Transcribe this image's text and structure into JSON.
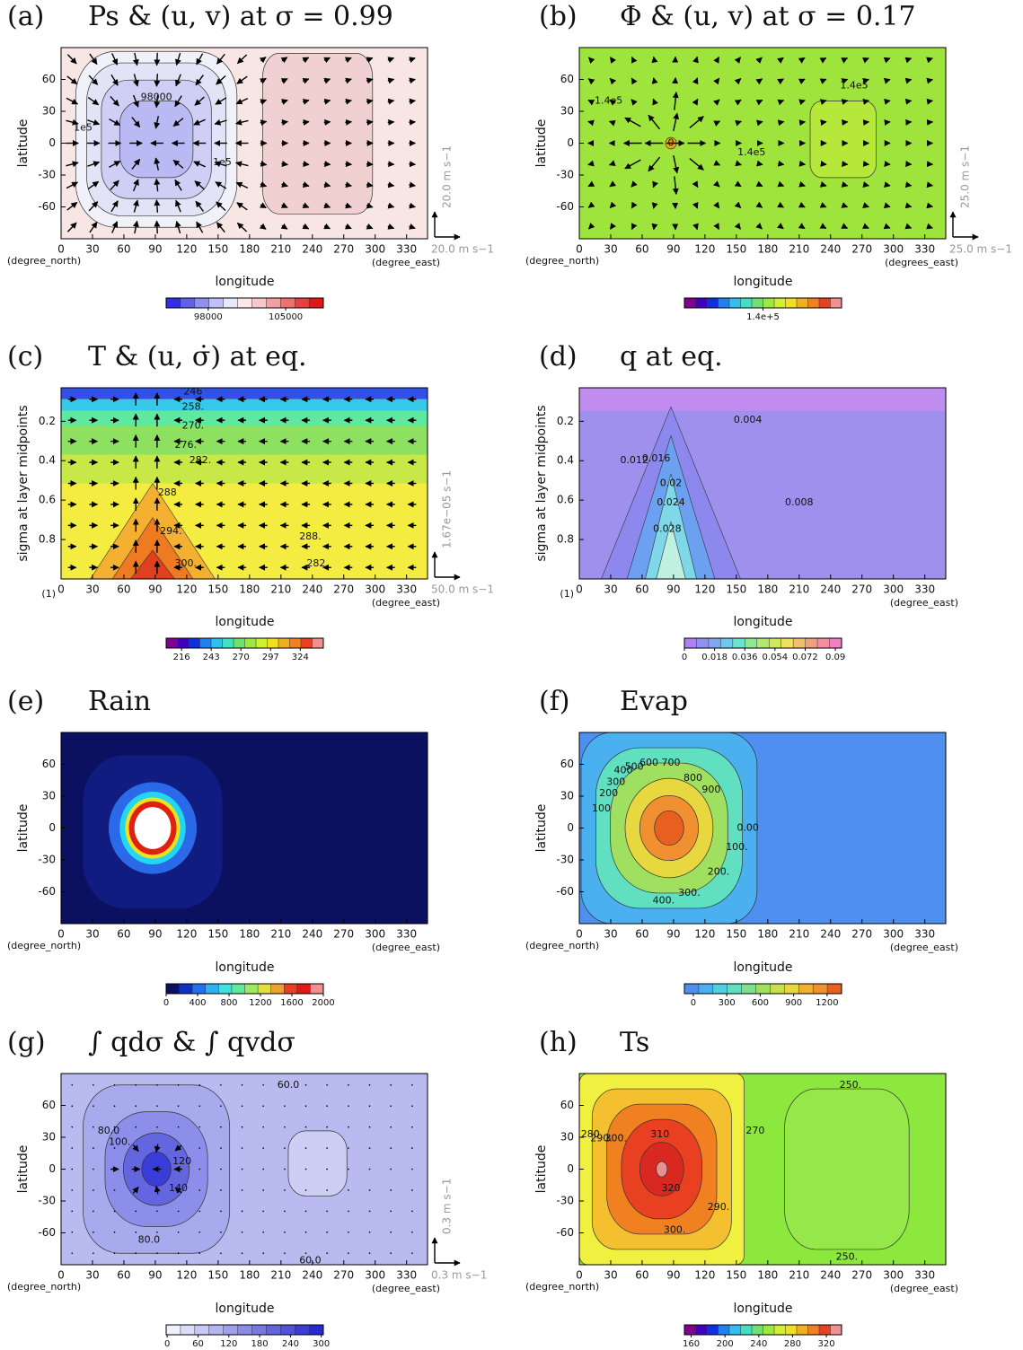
{
  "chart_data": [
    {
      "type": "contour",
      "panel_label": "(a)",
      "title": "Ps & (u, v) at σ = 0.99",
      "xlabel": "longitude",
      "ylabel": "latitude",
      "x_unit": "(degree_east)",
      "y_unit": "(degree_north)",
      "xlim": [
        0,
        350
      ],
      "ylim": [
        -90,
        90
      ],
      "xticks": [
        0,
        30,
        60,
        90,
        120,
        150,
        180,
        210,
        240,
        270,
        300,
        330
      ],
      "yticks": [
        -60,
        -30,
        0,
        30,
        60
      ],
      "vector_ref": {
        "x_label": "20.0 m s−1",
        "y_label": "20.0 m s−1"
      },
      "vectors": "converge",
      "contour_labels": [
        "98000",
        "1e5",
        "1e5"
      ],
      "colorbar": {
        "lim": [
          94200,
          108400
        ],
        "ticks": [
          98000,
          105000
        ],
        "colors": [
          "#3030e8",
          "#6060f0",
          "#9090f4",
          "#c0c0f8",
          "#e8e8fc",
          "#fce8e8",
          "#f8c8c8",
          "#f4a0a0",
          "#f07070",
          "#e84040",
          "#e01818"
        ]
      }
    },
    {
      "type": "contour",
      "panel_label": "(b)",
      "title": "Φ & (u, v) at σ = 0.17",
      "xlabel": "longitude",
      "ylabel": "latitude",
      "x_unit": "(degrees_east)",
      "y_unit": "(degree_north)",
      "xlim": [
        0,
        350
      ],
      "ylim": [
        -90,
        90
      ],
      "xticks": [
        0,
        30,
        60,
        90,
        120,
        150,
        180,
        210,
        240,
        270,
        300,
        330
      ],
      "yticks": [
        -60,
        -30,
        0,
        30,
        60
      ],
      "vector_ref": {
        "x_label": "25.0 m s−1",
        "y_label": "25.0 m s−1"
      },
      "vectors": "diverge",
      "contour_labels": [
        "1.4e5",
        "1.4e5",
        "1.4e5",
        "0"
      ],
      "colorbar": {
        "lim": [
          130000,
          150000
        ],
        "ticks": [
          {
            "value": 140000,
            "label": "1.4e+5"
          }
        ],
        "colors": [
          "#800090",
          "#4000c0",
          "#1030e0",
          "#2080f0",
          "#30c0f0",
          "#40e0c0",
          "#70e070",
          "#a0e840",
          "#d0f030",
          "#f0e020",
          "#f0b020",
          "#f08020",
          "#e84020",
          "#f09090"
        ]
      }
    },
    {
      "type": "contour",
      "panel_label": "(c)",
      "title": "T & (u, σ̇) at eq.",
      "xlabel": "longitude",
      "ylabel": "sigma at layer midpoints",
      "x_unit": "(degree_east)",
      "y_unit": "(1)",
      "xlim": [
        0,
        350
      ],
      "ylim": [
        1,
        0.03
      ],
      "xticks": [
        0,
        30,
        60,
        90,
        120,
        150,
        180,
        210,
        240,
        270,
        300,
        330
      ],
      "yticks": [
        0.2,
        0.4,
        0.6,
        0.8
      ],
      "vector_ref": {
        "x_label": "50.0 m s−1",
        "y_label": "1.67e−05 s−1"
      },
      "vectors": "section",
      "contour_labels": [
        "246",
        "258.",
        "270.",
        "276.",
        "282.",
        "288",
        "294.",
        "300.",
        "288.",
        "282."
      ],
      "colorbar": {
        "lim": [
          202,
          345
        ],
        "ticks": [
          216,
          243,
          270,
          297,
          324
        ],
        "colors": [
          "#800090",
          "#4000c0",
          "#1030e0",
          "#2080f0",
          "#30c0f0",
          "#40e0c0",
          "#70e070",
          "#a0e840",
          "#d0f030",
          "#f0e020",
          "#f0b020",
          "#f08020",
          "#e84020",
          "#f09090"
        ]
      }
    },
    {
      "type": "contour",
      "panel_label": "(d)",
      "title": "q at eq.",
      "xlabel": "longitude",
      "ylabel": "sigma at layer midpoints",
      "x_unit": "(degree_east)",
      "y_unit": "(1)",
      "xlim": [
        0,
        350
      ],
      "ylim": [
        1,
        0.03
      ],
      "xticks": [
        0,
        30,
        60,
        90,
        120,
        150,
        180,
        210,
        240,
        270,
        300,
        330
      ],
      "yticks": [
        0.2,
        0.4,
        0.6,
        0.8
      ],
      "contour_labels": [
        "0.004",
        "0.012",
        "0.016",
        "0.02",
        "0.024",
        "0.028",
        "0.008"
      ],
      "colorbar": {
        "lim": [
          0,
          0.0937
        ],
        "ticks": [
          0,
          0.018,
          0.036,
          0.054,
          0.072,
          0.09
        ],
        "colors": [
          "#b080f0",
          "#9090f0",
          "#80a8f0",
          "#70c8f0",
          "#70e0d0",
          "#90e890",
          "#b0e870",
          "#d0e860",
          "#f0e060",
          "#f0c070",
          "#f0a080",
          "#f090a0",
          "#f080c0"
        ]
      }
    },
    {
      "type": "contour",
      "panel_label": "(e)",
      "title": "Rain",
      "xlabel": "longitude",
      "ylabel": "latitude",
      "x_unit": "(degree_east)",
      "y_unit": "(degree_north)",
      "xlim": [
        0,
        350
      ],
      "ylim": [
        -90,
        90
      ],
      "xticks": [
        0,
        30,
        60,
        90,
        120,
        150,
        180,
        210,
        240,
        270,
        300,
        330
      ],
      "yticks": [
        -60,
        -30,
        0,
        30,
        60
      ],
      "contour_labels": [],
      "colorbar": {
        "lim": [
          0,
          2000
        ],
        "ticks": [
          0,
          400,
          800,
          1200,
          1600,
          2000
        ],
        "colors": [
          "#0b1060",
          "#1030c0",
          "#2070f0",
          "#30b0f0",
          "#40e0e0",
          "#60e8a0",
          "#a0e860",
          "#e0e040",
          "#f0a030",
          "#e84020",
          "#e01818",
          "#f09090"
        ]
      }
    },
    {
      "type": "contour",
      "panel_label": "(f)",
      "title": "Evap",
      "xlabel": "longitude",
      "ylabel": "latitude",
      "x_unit": "(degree_east)",
      "y_unit": "(degree_north)",
      "xlim": [
        0,
        350
      ],
      "ylim": [
        -90,
        90
      ],
      "xticks": [
        0,
        30,
        60,
        90,
        120,
        150,
        180,
        210,
        240,
        270,
        300,
        330
      ],
      "yticks": [
        -60,
        -30,
        0,
        30,
        60
      ],
      "contour_labels": [
        "100",
        "200",
        "300",
        "400",
        "500",
        "600",
        "700",
        "800",
        "900",
        "0.00",
        "100.",
        "200.",
        "300.",
        "400."
      ],
      "colorbar": {
        "lim": [
          -80,
          1330
        ],
        "ticks": [
          0,
          300,
          600,
          900,
          1200
        ],
        "colors": [
          "#4f8ff0",
          "#4ab0f0",
          "#50d0e0",
          "#60e0c0",
          "#80e090",
          "#a0e060",
          "#c8e050",
          "#e8d840",
          "#f0b030",
          "#f09030",
          "#e86020"
        ]
      }
    },
    {
      "type": "contour",
      "panel_label": "(g)",
      "title": "∫ qdσ & ∫ qvdσ",
      "xlabel": "longitude",
      "ylabel": "latitude",
      "x_unit": "(degree_east)",
      "y_unit": "(degree_north)",
      "xlim": [
        0,
        350
      ],
      "ylim": [
        -90,
        90
      ],
      "xticks": [
        0,
        30,
        60,
        90,
        120,
        150,
        180,
        210,
        240,
        270,
        300,
        330
      ],
      "yticks": [
        -60,
        -30,
        0,
        30,
        60
      ],
      "vector_ref": {
        "x_label": "0.3 m s−1",
        "y_label": "0.3 m s−1"
      },
      "vectors": "dots",
      "contour_labels": [
        "60.0",
        "80.0",
        "100.",
        "120",
        "140",
        "80.0",
        "60.0"
      ],
      "colorbar": {
        "lim": [
          -2,
          304
        ],
        "ticks": [
          0,
          60,
          120,
          180,
          240,
          300
        ],
        "colors": [
          "#f0f0fc",
          "#dcdcf8",
          "#c8c8f4",
          "#b4b4f0",
          "#a0a0ec",
          "#8c8ce8",
          "#7878e4",
          "#6464e0",
          "#5050dc",
          "#3c3cd8",
          "#2828d4"
        ]
      }
    },
    {
      "type": "contour",
      "panel_label": "(h)",
      "title": "Ts",
      "xlabel": "longitude",
      "ylabel": "latitude",
      "x_unit": "(degree_east)",
      "y_unit": "(degree_north)",
      "xlim": [
        0,
        350
      ],
      "ylim": [
        -90,
        90
      ],
      "xticks": [
        0,
        30,
        60,
        90,
        120,
        150,
        180,
        210,
        240,
        270,
        300,
        330
      ],
      "yticks": [
        -60,
        -30,
        0,
        30,
        60
      ],
      "contour_labels": [
        "250.",
        "280",
        "290.",
        "300.",
        "310",
        "320",
        "290.",
        "300.",
        "250.",
        "270"
      ],
      "colorbar": {
        "lim": [
          152,
          338
        ],
        "ticks": [
          160,
          200,
          240,
          280,
          320
        ],
        "colors": [
          "#800090",
          "#4000c0",
          "#1030e0",
          "#2080f0",
          "#30c0f0",
          "#40e0c0",
          "#70e070",
          "#a0e840",
          "#d0f030",
          "#f0e020",
          "#f0b020",
          "#f08020",
          "#e84020",
          "#f09090"
        ]
      }
    }
  ]
}
